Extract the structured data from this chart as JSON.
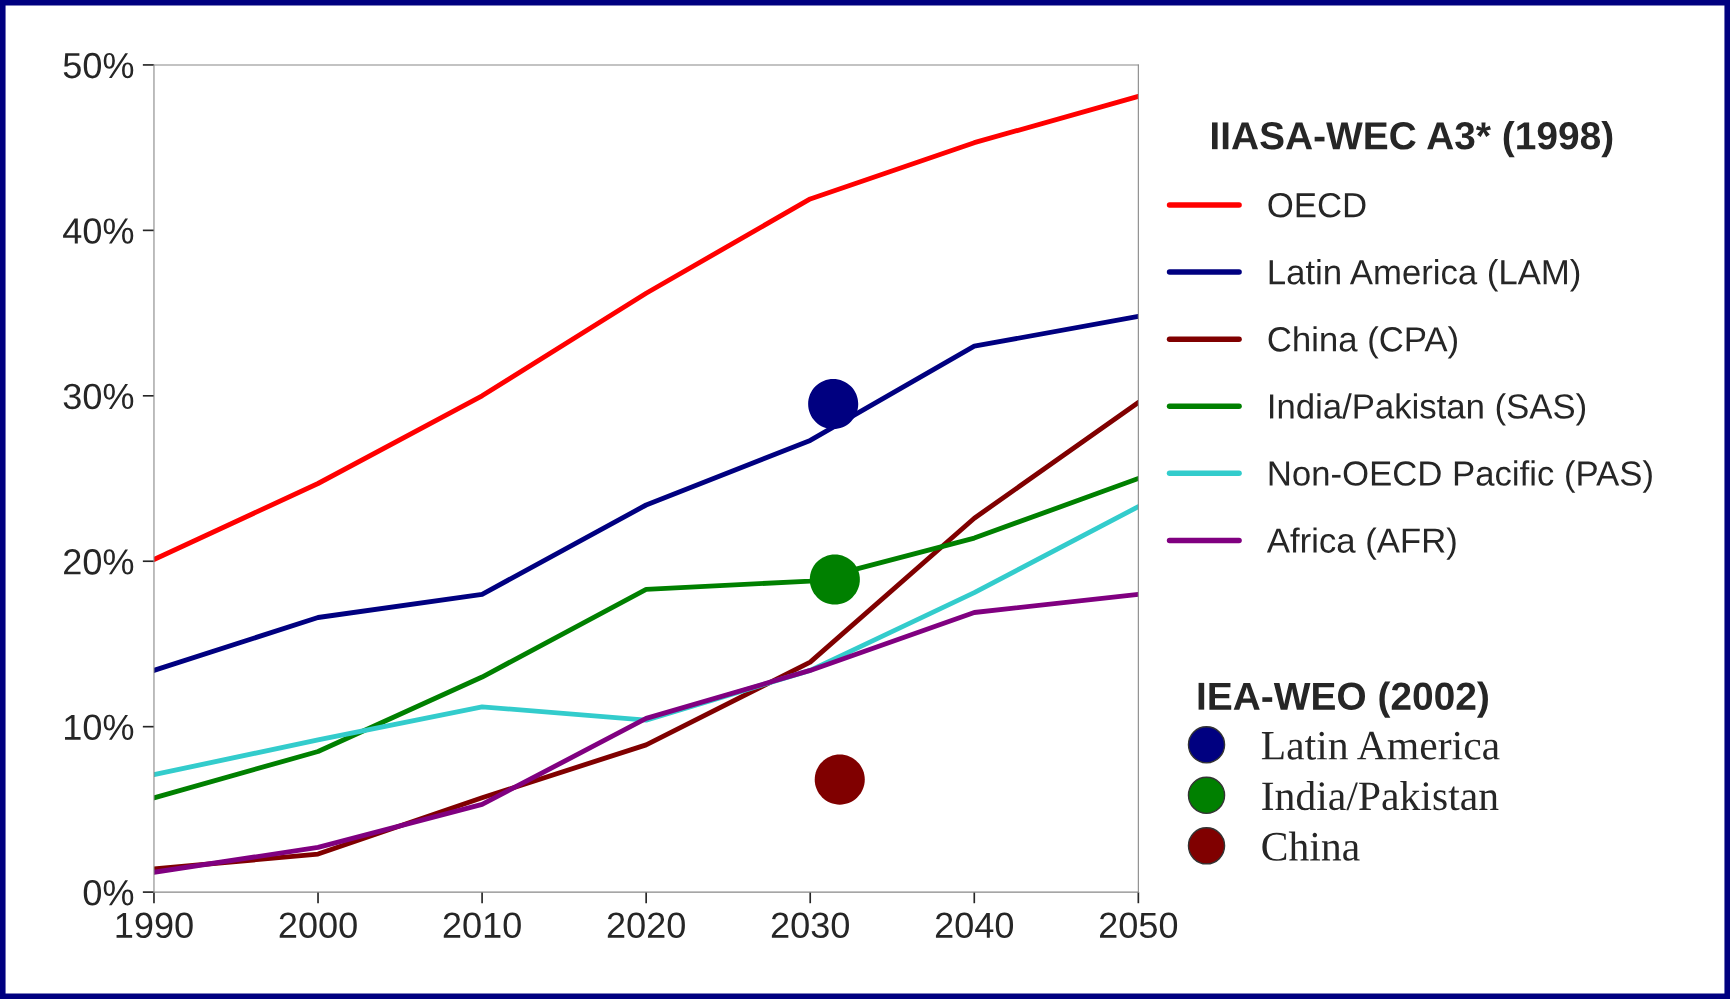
{
  "chart_data": {
    "type": "line",
    "x": [
      1990,
      2000,
      2010,
      2020,
      2030,
      2040,
      2050
    ],
    "xlim": [
      1990,
      2050
    ],
    "xticks": [
      1990,
      2000,
      2010,
      2020,
      2030,
      2040,
      2050
    ],
    "ylim": [
      0,
      50
    ],
    "yticks": [
      {
        "value": 0,
        "label": "0%"
      },
      {
        "value": 10,
        "label": "10%"
      },
      {
        "value": 20,
        "label": "20%"
      },
      {
        "value": 30,
        "label": "30%"
      },
      {
        "value": 40,
        "label": "40%"
      },
      {
        "value": 50,
        "label": "50%"
      }
    ],
    "grid": false,
    "legend": "right",
    "marker": "none",
    "line_style": "solid",
    "legend_title": "IIASA-WEC A3* (1998)",
    "annotations": [
      "IEA-WEO (2002)"
    ],
    "series": [
      {
        "name": "OECD",
        "color": "#ff0000",
        "values": [
          20.1,
          24.7,
          30.0,
          36.2,
          41.9,
          45.3,
          48.1
        ]
      },
      {
        "name": "Latin America (LAM)",
        "color": "#000080",
        "values": [
          13.4,
          16.6,
          18.0,
          23.4,
          27.3,
          33.0,
          34.8
        ]
      },
      {
        "name": "China (CPA)",
        "color": "#800000",
        "values": [
          1.4,
          2.3,
          5.7,
          8.9,
          13.9,
          22.6,
          29.6
        ]
      },
      {
        "name": "India/Pakistan (SAS)",
        "color": "#008000",
        "values": [
          5.7,
          8.5,
          13.0,
          18.3,
          18.8,
          21.4,
          25.0
        ]
      },
      {
        "name": "Non-OECD Pacific (PAS)",
        "color": "#33cccc",
        "values": [
          7.1,
          9.2,
          11.2,
          10.4,
          13.4,
          18.1,
          23.3
        ]
      },
      {
        "name": "Africa (AFR)",
        "color": "#800080",
        "values": [
          1.2,
          2.7,
          5.3,
          10.5,
          13.4,
          16.9,
          18.0
        ]
      },
      {
        "name": "Latin America",
        "type": "scatter",
        "marker": "circle",
        "color": "#000080",
        "x": [
          2031.4
        ],
        "values": [
          29.5
        ]
      },
      {
        "name": "India/Pakistan",
        "type": "scatter",
        "marker": "circle",
        "color": "#008000",
        "x": [
          2031.5
        ],
        "values": [
          18.9
        ]
      },
      {
        "name": "China",
        "type": "scatter",
        "marker": "circle",
        "color": "#800000",
        "x": [
          2031.8
        ],
        "values": [
          6.8
        ]
      }
    ]
  }
}
